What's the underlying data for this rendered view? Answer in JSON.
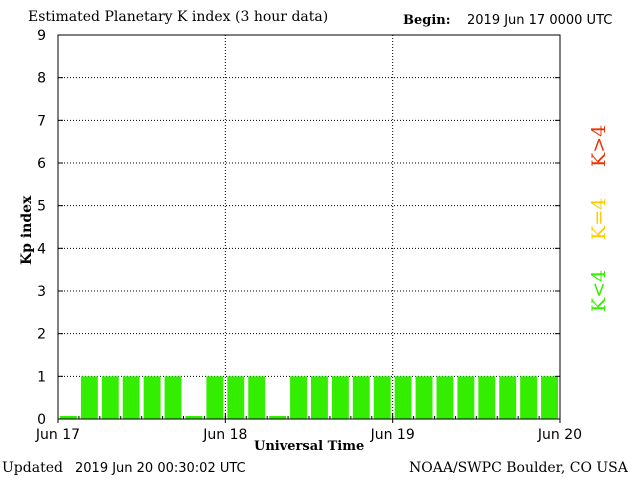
{
  "chart_data": {
    "type": "bar",
    "title": "Estimated Planetary K index (3 hour data)",
    "begin_label": "Begin:",
    "begin_value": "2019 Jun 17 0000 UTC",
    "xlabel": "Universal Time",
    "ylabel": "Kp index",
    "ylim": [
      0,
      9
    ],
    "yticks": [
      "0",
      "1",
      "2",
      "3",
      "4",
      "5",
      "6",
      "7",
      "8",
      "9"
    ],
    "xticks": [
      "Jun 17",
      "Jun 18",
      "Jun 19",
      "Jun 20"
    ],
    "values": [
      0,
      1,
      1,
      1,
      1,
      1,
      0,
      1,
      1,
      1,
      0,
      1,
      1,
      1,
      1,
      1,
      1,
      1,
      1,
      1,
      1,
      1,
      1,
      1
    ],
    "grid": true,
    "legend": [
      {
        "label": "K<4",
        "color": "#33ee00"
      },
      {
        "label": "K=4",
        "color": "#ffcc00"
      },
      {
        "label": "K>4",
        "color": "#ee3300"
      }
    ],
    "bar_color": "#33ee00"
  },
  "footer": {
    "updated_label": "Updated",
    "updated_value": "2019 Jun 20 00:30:02 UTC",
    "credit": "NOAA/SWPC Boulder, CO USA"
  }
}
